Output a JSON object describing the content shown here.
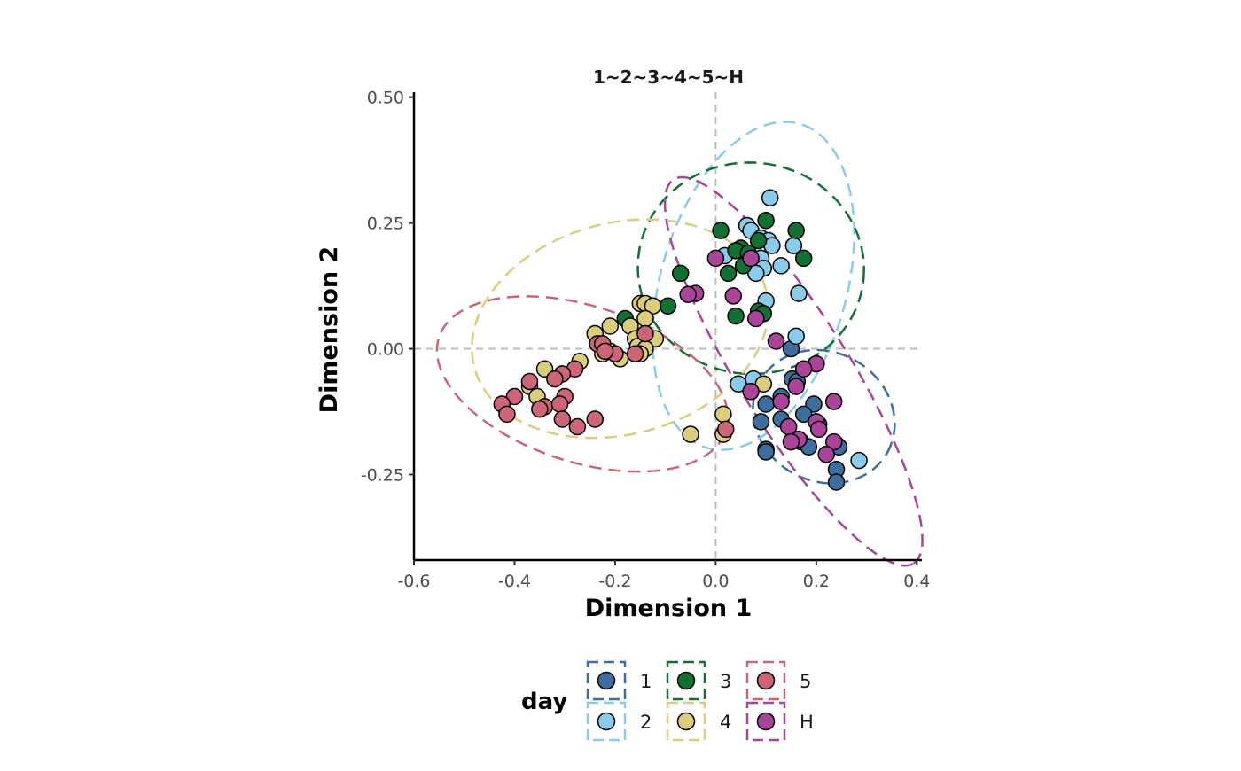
{
  "chart_data": {
    "type": "scatter",
    "title": "1~2~3~4~5~H",
    "xlabel": "Dimension 1",
    "ylabel": "Dimension 2",
    "xlim": [
      -0.6,
      0.41
    ],
    "ylim": [
      -0.42,
      0.51
    ],
    "x_ticks": [
      -0.6,
      -0.4,
      -0.2,
      0.0,
      0.2,
      0.4
    ],
    "x_tick_labels": [
      "-0.6",
      "-0.4",
      "-0.2",
      "0.0",
      "0.2",
      "0.4"
    ],
    "y_ticks": [
      0.5,
      0.25,
      0.0,
      -0.25
    ],
    "y_tick_labels": [
      "0.50",
      "0.25",
      "0.00",
      "-0.25"
    ],
    "reference_lines": {
      "x": 0.0,
      "y": 0.0,
      "style": "dashed",
      "color": "#bdbdbd"
    },
    "grid": false,
    "legend": {
      "title": "day",
      "position": "bottom",
      "columns": 3
    },
    "ellipses": "dashed confidence ellipse per group",
    "series": [
      {
        "name": "1",
        "color": "#3d6e9e",
        "ellipse": {
          "cx": 0.215,
          "cy": -0.135,
          "rx": 0.145,
          "ry": 0.128,
          "angle": -30
        },
        "points": [
          [
            0.15,
            0.0
          ],
          [
            0.152,
            -0.06
          ],
          [
            0.162,
            -0.065
          ],
          [
            0.13,
            -0.095
          ],
          [
            0.195,
            -0.11
          ],
          [
            0.1,
            -0.11
          ],
          [
            0.09,
            -0.145
          ],
          [
            0.13,
            -0.14
          ],
          [
            0.175,
            -0.13
          ],
          [
            0.205,
            -0.15
          ],
          [
            0.17,
            -0.185
          ],
          [
            0.185,
            -0.195
          ],
          [
            0.1,
            -0.2
          ],
          [
            0.1,
            -0.205
          ],
          [
            0.24,
            -0.19
          ],
          [
            0.245,
            -0.195
          ],
          [
            0.24,
            -0.24
          ],
          [
            0.24,
            -0.265
          ]
        ]
      },
      {
        "name": "2",
        "color": "#89cbea",
        "ellipse": {
          "cx": 0.075,
          "cy": 0.125,
          "rx": 0.185,
          "ry": 0.335,
          "angle": -16
        },
        "points": [
          [
            0.108,
            0.3
          ],
          [
            0.062,
            0.245
          ],
          [
            0.07,
            0.235
          ],
          [
            0.09,
            0.22
          ],
          [
            0.105,
            0.215
          ],
          [
            0.112,
            0.205
          ],
          [
            0.155,
            0.205
          ],
          [
            0.018,
            0.185
          ],
          [
            0.09,
            0.18
          ],
          [
            0.095,
            0.16
          ],
          [
            0.08,
            0.15
          ],
          [
            0.13,
            0.165
          ],
          [
            0.1,
            0.095
          ],
          [
            0.165,
            0.11
          ],
          [
            0.16,
            0.025
          ],
          [
            0.075,
            -0.06
          ],
          [
            0.045,
            -0.07
          ],
          [
            0.285,
            -0.222
          ]
        ]
      },
      {
        "name": "3",
        "color": "#137033",
        "ellipse": {
          "cx": 0.07,
          "cy": 0.16,
          "rx": 0.225,
          "ry": 0.21,
          "angle": -5
        },
        "points": [
          [
            0.01,
            0.235
          ],
          [
            0.1,
            0.255
          ],
          [
            0.16,
            0.235
          ],
          [
            0.05,
            0.2
          ],
          [
            0.04,
            0.195
          ],
          [
            0.065,
            0.19
          ],
          [
            0.085,
            0.215
          ],
          [
            0.175,
            0.18
          ],
          [
            0.055,
            0.165
          ],
          [
            0.025,
            0.15
          ],
          [
            -0.07,
            0.15
          ],
          [
            -0.095,
            0.085
          ],
          [
            -0.18,
            0.06
          ],
          [
            0.085,
            0.075
          ],
          [
            0.095,
            0.07
          ],
          [
            0.04,
            0.065
          ]
        ]
      },
      {
        "name": "4",
        "color": "#dccd7d",
        "ellipse": {
          "cx": -0.19,
          "cy": 0.04,
          "rx": 0.3,
          "ry": 0.21,
          "angle": 15
        },
        "points": [
          [
            -0.15,
            0.09
          ],
          [
            -0.14,
            0.09
          ],
          [
            -0.125,
            0.085
          ],
          [
            -0.14,
            0.06
          ],
          [
            -0.21,
            0.045
          ],
          [
            -0.17,
            0.045
          ],
          [
            -0.24,
            0.03
          ],
          [
            -0.16,
            0.02
          ],
          [
            -0.12,
            0.02
          ],
          [
            -0.155,
            0.005
          ],
          [
            -0.14,
            0.0
          ],
          [
            -0.21,
            -0.005
          ],
          [
            -0.225,
            -0.01
          ],
          [
            -0.15,
            -0.01
          ],
          [
            -0.19,
            -0.02
          ],
          [
            -0.27,
            -0.025
          ],
          [
            -0.34,
            -0.04
          ],
          [
            -0.37,
            -0.075
          ],
          [
            -0.355,
            -0.095
          ],
          [
            0.095,
            -0.07
          ],
          [
            0.015,
            -0.13
          ],
          [
            0.015,
            -0.17
          ],
          [
            -0.05,
            -0.17
          ]
        ]
      },
      {
        "name": "5",
        "color": "#cc6677",
        "ellipse": {
          "cx": -0.265,
          "cy": -0.07,
          "rx": 0.3,
          "ry": 0.155,
          "angle": -18
        },
        "points": [
          [
            -0.14,
            0.03
          ],
          [
            -0.235,
            0.01
          ],
          [
            -0.225,
            0.01
          ],
          [
            -0.2,
            -0.01
          ],
          [
            -0.22,
            -0.005
          ],
          [
            -0.28,
            -0.04
          ],
          [
            -0.305,
            -0.05
          ],
          [
            -0.37,
            -0.065
          ],
          [
            -0.32,
            -0.06
          ],
          [
            -0.3,
            -0.095
          ],
          [
            -0.4,
            -0.095
          ],
          [
            -0.425,
            -0.11
          ],
          [
            -0.34,
            -0.115
          ],
          [
            -0.31,
            -0.11
          ],
          [
            -0.35,
            -0.12
          ],
          [
            -0.415,
            -0.13
          ],
          [
            -0.305,
            -0.14
          ],
          [
            -0.24,
            -0.14
          ],
          [
            -0.275,
            -0.155
          ],
          [
            0.02,
            -0.16
          ],
          [
            -0.16,
            -0.01
          ]
        ]
      },
      {
        "name": "H",
        "color": "#aa4499",
        "ellipse": {
          "cx": 0.155,
          "cy": -0.045,
          "rx": 0.45,
          "ry": 0.11,
          "angle": -58
        },
        "points": [
          [
            0.0,
            0.18
          ],
          [
            0.07,
            0.18
          ],
          [
            -0.04,
            0.11
          ],
          [
            -0.055,
            0.108
          ],
          [
            0.035,
            0.105
          ],
          [
            0.08,
            0.06
          ],
          [
            0.12,
            0.015
          ],
          [
            0.2,
            -0.03
          ],
          [
            0.175,
            -0.04
          ],
          [
            0.16,
            -0.075
          ],
          [
            0.07,
            -0.085
          ],
          [
            0.13,
            -0.105
          ],
          [
            0.235,
            -0.105
          ],
          [
            0.2,
            -0.145
          ],
          [
            0.205,
            -0.16
          ],
          [
            0.145,
            -0.155
          ],
          [
            0.165,
            -0.18
          ],
          [
            0.15,
            -0.185
          ],
          [
            0.235,
            -0.185
          ],
          [
            0.22,
            -0.21
          ]
        ]
      }
    ]
  }
}
